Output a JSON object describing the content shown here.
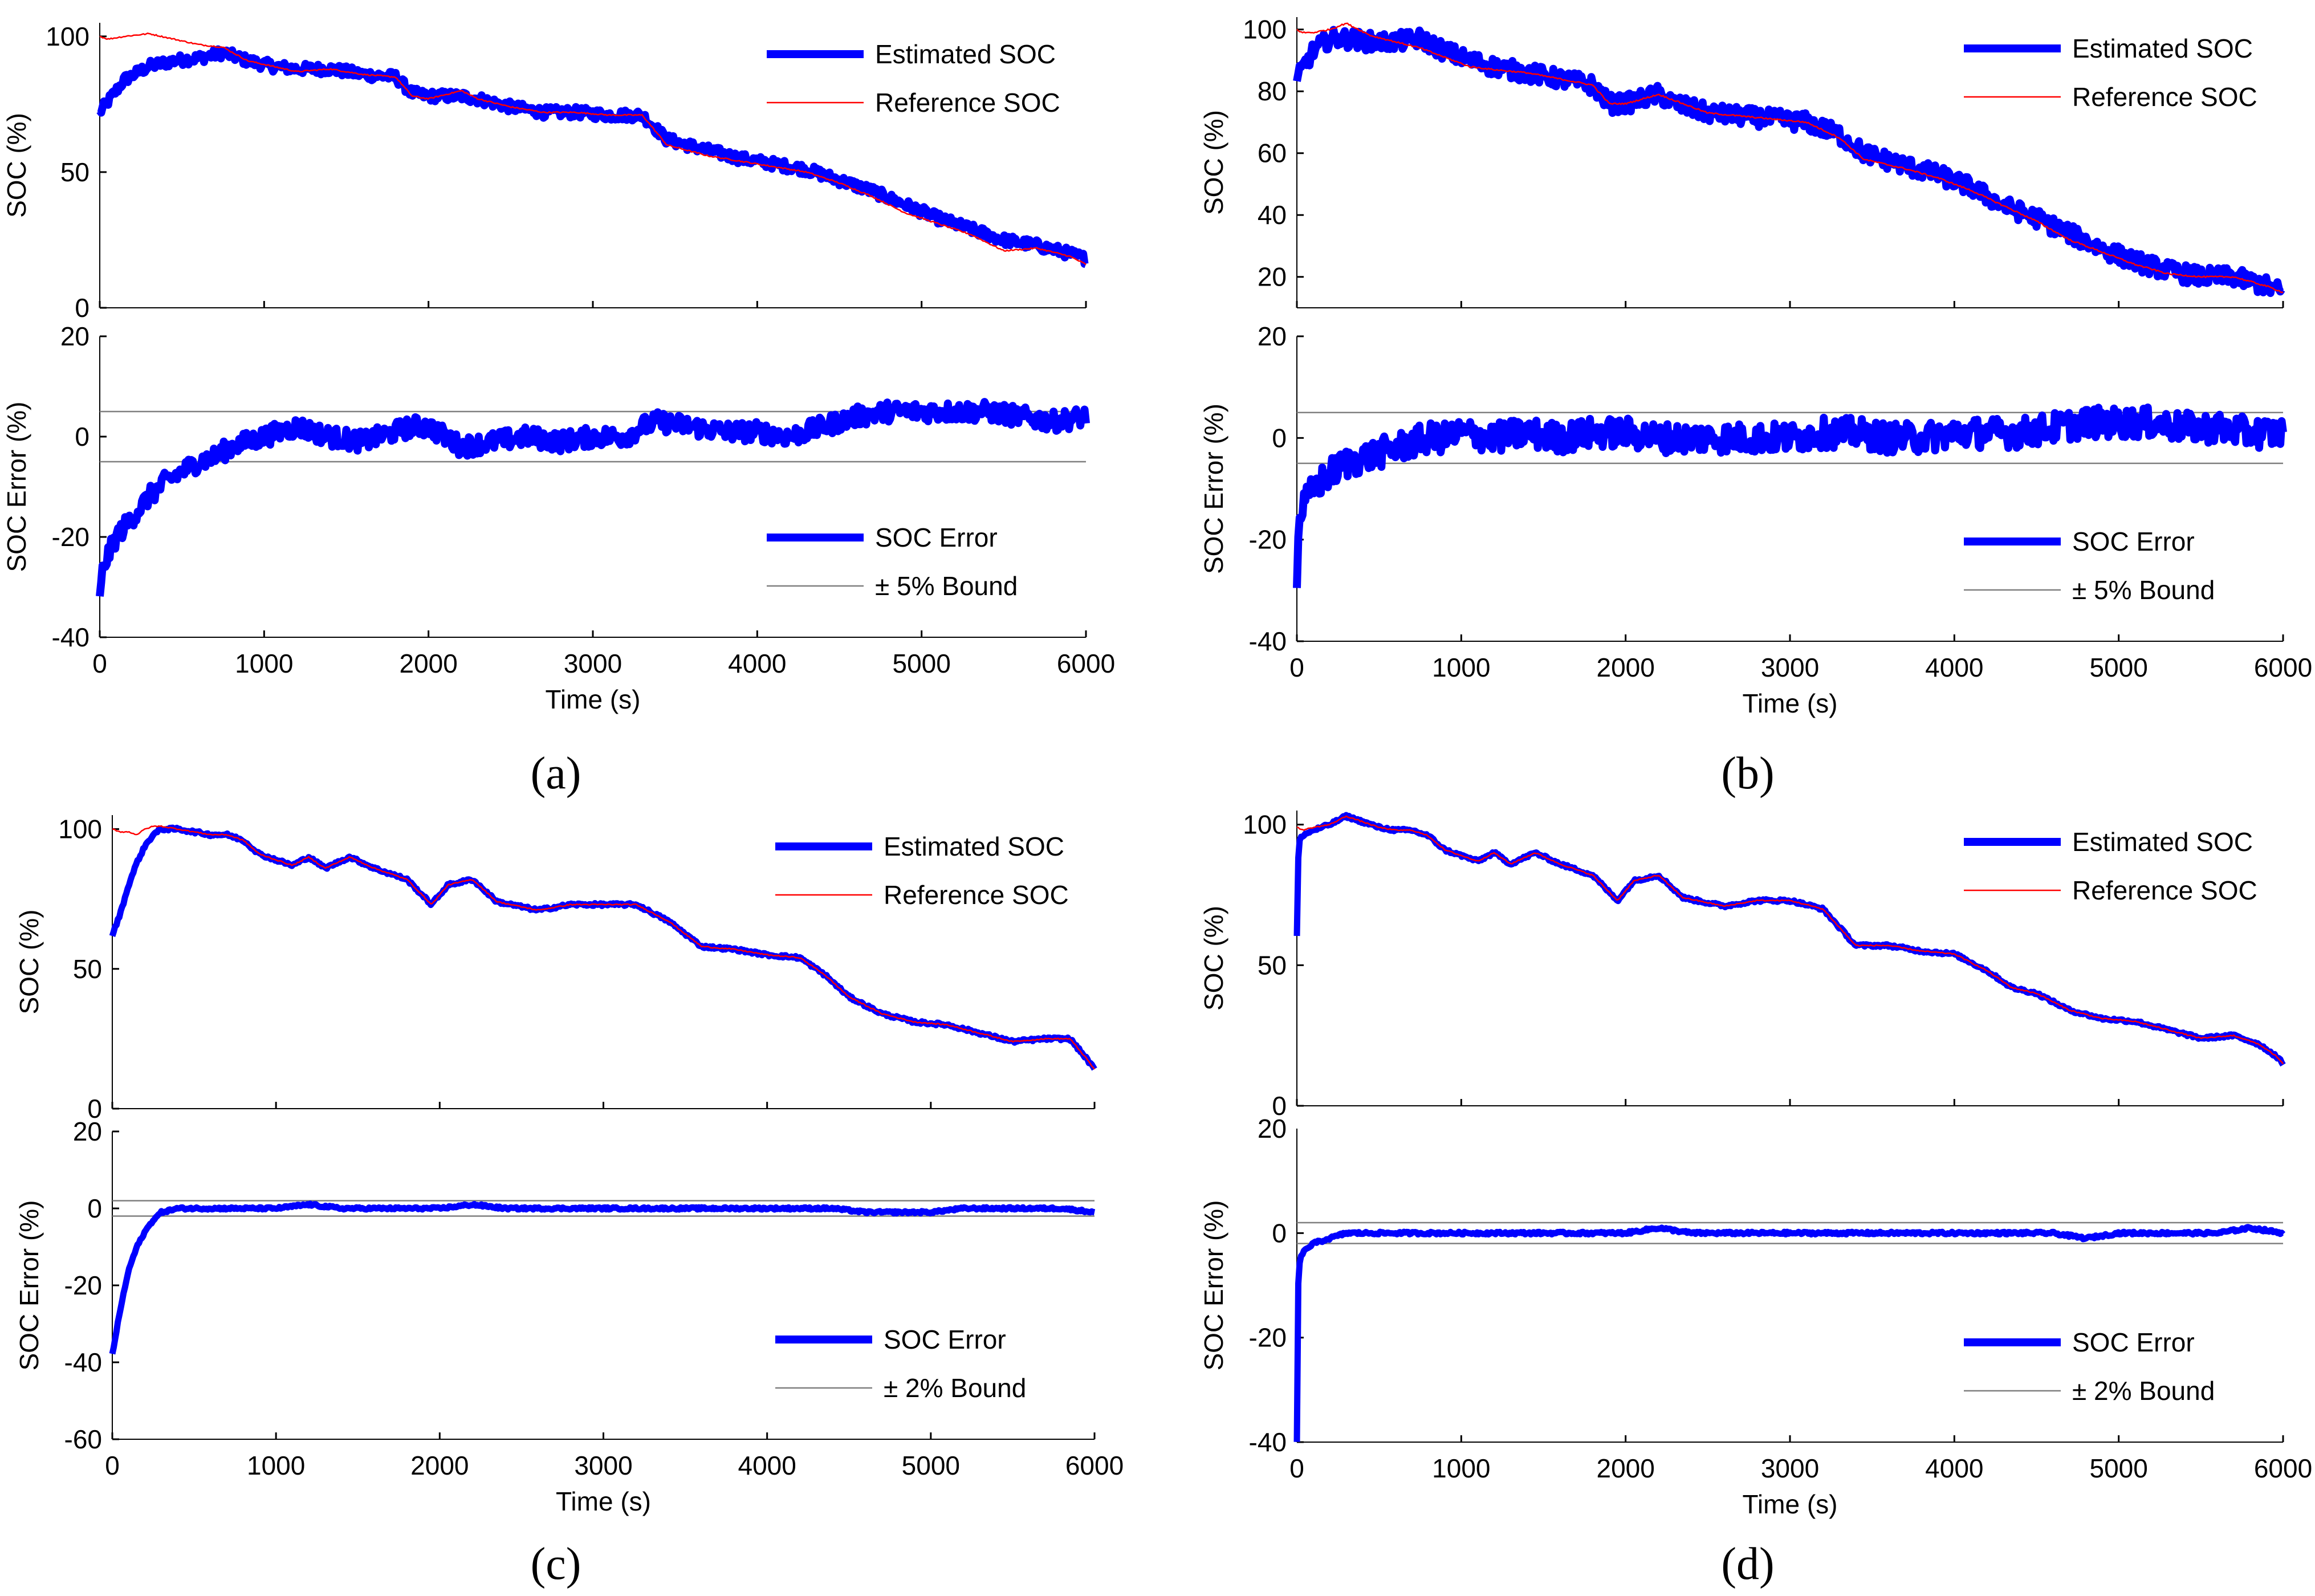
{
  "figure": {
    "panel_labels": [
      "(a)",
      "(b)",
      "(c)",
      "(d)"
    ]
  },
  "colors": {
    "estimated": "#0000ff",
    "reference": "#ff0000",
    "bound": "#7f7f7f",
    "axis": "#000000",
    "background": "#ffffff"
  },
  "chart_data": [
    {
      "type": "line",
      "panel": "a",
      "title": "",
      "xlabel": "",
      "ylabel": "SOC (%)",
      "xlim": [
        0,
        6000
      ],
      "ylim": [
        0,
        105
      ],
      "xticks": [],
      "yticks": [
        0,
        50,
        100
      ],
      "legend": {
        "position": "top-right",
        "entries": [
          "Estimated SOC",
          "Reference SOC"
        ]
      },
      "noise": 4,
      "x": [
        0,
        50,
        150,
        300,
        450,
        600,
        750,
        900,
        1050,
        1200,
        1400,
        1600,
        1800,
        1900,
        2000,
        2200,
        2300,
        2500,
        2700,
        2900,
        3100,
        3300,
        3450,
        3700,
        3900,
        4100,
        4300,
        4500,
        4700,
        4900,
        5100,
        5300,
        5500,
        5700,
        5900,
        6000
      ],
      "series": [
        {
          "name": "Estimated SOC",
          "values": [
            72,
            76,
            84,
            89,
            91,
            92,
            94,
            91,
            89,
            88,
            88,
            86,
            85,
            79,
            78,
            78,
            77,
            74,
            72,
            72,
            71,
            71,
            62,
            58,
            55,
            53,
            51,
            47,
            43,
            38,
            33,
            29,
            25,
            23,
            20,
            18
          ]
        },
        {
          "name": "Reference SOC",
          "values": [
            100,
            99,
            100,
            101,
            99,
            97,
            96,
            91,
            89,
            87,
            88,
            86,
            85,
            78,
            77,
            80,
            77,
            74,
            72,
            72,
            71,
            71,
            60,
            56,
            54,
            52,
            50,
            46,
            41,
            35,
            31,
            27,
            21,
            22,
            19,
            16
          ]
        }
      ]
    },
    {
      "type": "line",
      "panel": "a",
      "title": "",
      "xlabel": "Time (s)",
      "ylabel": "SOC Error (%)",
      "xlim": [
        0,
        6000
      ],
      "ylim": [
        -40,
        20
      ],
      "xticks": [
        0,
        1000,
        2000,
        3000,
        4000,
        5000,
        6000
      ],
      "yticks": [
        -40,
        -20,
        0,
        20
      ],
      "bounds": [
        5,
        -5
      ],
      "legend": {
        "position": "bottom-right",
        "entries": [
          "SOC Error",
          "± 5% Bound"
        ]
      },
      "noise": 4,
      "x": [
        0,
        20,
        100,
        200,
        300,
        400,
        500,
        600,
        700,
        800,
        900,
        1000,
        1100,
        1200,
        1400,
        1600,
        1800,
        1900,
        2000,
        2100,
        2200,
        2400,
        2600,
        2800,
        3000,
        3200,
        3300,
        3400,
        3600,
        3800,
        4000,
        4200,
        4400,
        4600,
        4800,
        5000,
        5200,
        5400,
        5600,
        5800,
        6000
      ],
      "series": [
        {
          "name": "SOC Error",
          "values": [
            -33,
            -26,
            -20,
            -16,
            -12,
            -9,
            -7,
            -5,
            -4,
            -2,
            -1,
            0,
            1,
            2,
            0,
            -1,
            1,
            2,
            2,
            0,
            -2,
            -1,
            0,
            -1,
            0,
            0,
            2,
            3,
            2,
            1,
            1,
            0,
            2,
            4,
            5,
            5,
            5,
            5,
            4,
            3,
            4
          ]
        }
      ]
    },
    {
      "type": "line",
      "panel": "b",
      "title": "",
      "xlabel": "",
      "ylabel": "SOC (%)",
      "xlim": [
        0,
        6000
      ],
      "ylim": [
        10,
        104
      ],
      "xticks": [],
      "yticks": [
        20,
        40,
        60,
        80,
        100
      ],
      "legend": {
        "position": "top-right",
        "entries": [
          "Estimated SOC",
          "Reference SOC"
        ]
      },
      "noise": 6,
      "x": [
        0,
        30,
        100,
        200,
        300,
        450,
        600,
        750,
        900,
        1050,
        1200,
        1400,
        1600,
        1800,
        1900,
        2000,
        2200,
        2300,
        2500,
        2700,
        2900,
        3100,
        3300,
        3450,
        3700,
        3900,
        4100,
        4300,
        4500,
        4700,
        4900,
        5100,
        5300,
        5500,
        5700,
        5900,
        6000
      ],
      "series": [
        {
          "name": "Estimated SOC",
          "values": [
            83,
            87,
            93,
            97,
            97,
            96,
            96,
            97,
            93,
            90,
            88,
            86,
            84,
            82,
            76,
            76,
            79,
            76,
            73,
            72,
            71,
            70,
            66,
            60,
            56,
            53,
            49,
            43,
            39,
            34,
            29,
            25,
            22,
            20,
            20,
            17,
            15
          ]
        },
        {
          "name": "Reference SOC",
          "values": [
            100,
            99,
            99,
            100,
            102,
            98,
            96,
            94,
            91,
            88,
            87,
            86,
            84,
            82,
            76,
            76,
            79,
            77,
            73,
            72,
            71,
            70,
            65,
            58,
            55,
            52,
            48,
            43,
            38,
            32,
            28,
            24,
            21,
            20,
            20,
            17,
            15
          ]
        }
      ]
    },
    {
      "type": "line",
      "panel": "b",
      "title": "",
      "xlabel": "Time (s)",
      "ylabel": "SOC Error (%)",
      "xlim": [
        0,
        6000
      ],
      "ylim": [
        -40,
        20
      ],
      "xticks": [
        0,
        1000,
        2000,
        3000,
        4000,
        5000,
        6000
      ],
      "yticks": [
        -40,
        -20,
        0,
        20
      ],
      "bounds": [
        5,
        -5
      ],
      "legend": {
        "position": "bottom-right",
        "entries": [
          "SOC Error",
          "± 5% Bound"
        ]
      },
      "noise": 6,
      "x": [
        0,
        15,
        50,
        100,
        200,
        300,
        400,
        500,
        600,
        700,
        800,
        900,
        1000,
        1200,
        1400,
        1600,
        1800,
        2000,
        2200,
        2400,
        2600,
        2800,
        3000,
        3200,
        3400,
        3600,
        3800,
        4000,
        4200,
        4400,
        4600,
        4800,
        5000,
        5200,
        5400,
        5600,
        5800,
        6000
      ],
      "series": [
        {
          "name": "SOC Error",
          "values": [
            -28,
            -15,
            -13,
            -10,
            -7,
            -5,
            -4,
            -3,
            -2,
            -1,
            0,
            0,
            1,
            0,
            1,
            0,
            1,
            1,
            0,
            0,
            0,
            0,
            0,
            1,
            1,
            0,
            0,
            1,
            1,
            1,
            2,
            3,
            3,
            3,
            2,
            2,
            1,
            1
          ]
        }
      ]
    },
    {
      "type": "line",
      "panel": "c",
      "title": "",
      "xlabel": "",
      "ylabel": "SOC (%)",
      "xlim": [
        0,
        6000
      ],
      "ylim": [
        0,
        105
      ],
      "xticks": [],
      "yticks": [
        0,
        50,
        100
      ],
      "legend": {
        "position": "top-right",
        "entries": [
          "Estimated SOC",
          "Reference SOC"
        ]
      },
      "noise": 1,
      "x": [
        0,
        50,
        100,
        150,
        200,
        250,
        300,
        400,
        500,
        600,
        700,
        800,
        900,
        1000,
        1100,
        1200,
        1300,
        1450,
        1600,
        1800,
        1950,
        2050,
        2200,
        2350,
        2600,
        2800,
        3000,
        3200,
        3400,
        3600,
        3800,
        4000,
        4200,
        4350,
        4500,
        4700,
        4900,
        5100,
        5300,
        5500,
        5700,
        5850,
        5950,
        6000
      ],
      "series": [
        {
          "name": "Estimated SOC",
          "values": [
            62,
            70,
            80,
            88,
            94,
            98,
            100,
            100,
            99,
            98,
            98,
            96,
            91,
            89,
            87,
            90,
            86,
            90,
            86,
            82,
            73,
            80,
            82,
            74,
            71,
            73,
            73,
            73,
            67,
            58,
            57,
            55,
            54,
            48,
            40,
            34,
            31,
            30,
            27,
            24,
            25,
            25,
            18,
            14
          ]
        },
        {
          "name": "Reference SOC",
          "values": [
            100,
            99,
            99,
            98,
            100,
            101,
            101,
            100,
            99,
            98,
            98,
            96,
            91,
            89,
            87,
            90,
            86,
            90,
            86,
            82,
            73,
            80,
            82,
            74,
            71,
            73,
            73,
            73,
            67,
            58,
            57,
            55,
            54,
            48,
            40,
            34,
            31,
            30,
            27,
            24,
            25,
            25,
            18,
            14
          ]
        }
      ]
    },
    {
      "type": "line",
      "panel": "c",
      "title": "",
      "xlabel": "Time (s)",
      "ylabel": "SOC Error (%)",
      "xlim": [
        0,
        6000
      ],
      "ylim": [
        -60,
        20
      ],
      "xticks": [
        0,
        1000,
        2000,
        3000,
        4000,
        5000,
        6000
      ],
      "yticks": [
        -60,
        -40,
        -20,
        0,
        20
      ],
      "bounds": [
        2,
        -2
      ],
      "legend": {
        "position": "bottom-right",
        "entries": [
          "SOC Error",
          "± 2% Bound"
        ]
      },
      "noise": 0.6,
      "x": [
        0,
        25,
        50,
        75,
        100,
        150,
        200,
        250,
        300,
        400,
        600,
        800,
        1000,
        1200,
        1400,
        1600,
        1800,
        2000,
        2200,
        2400,
        2600,
        2800,
        3000,
        3200,
        3400,
        3600,
        3800,
        4000,
        4200,
        4400,
        4600,
        4800,
        5000,
        5200,
        5400,
        5600,
        5800,
        6000
      ],
      "series": [
        {
          "name": "SOC Error",
          "values": [
            -38,
            -32,
            -26,
            -21,
            -16,
            -10,
            -6,
            -3,
            -1,
            0,
            0,
            0,
            0,
            1,
            0,
            0,
            0,
            0,
            1,
            0,
            0,
            0,
            0,
            0,
            0,
            0,
            0,
            0,
            0,
            0,
            -1,
            -1,
            -1,
            0,
            0,
            0,
            0,
            -1
          ]
        }
      ]
    },
    {
      "type": "line",
      "panel": "d",
      "title": "",
      "xlabel": "",
      "ylabel": "SOC (%)",
      "xlim": [
        0,
        6000
      ],
      "ylim": [
        0,
        105
      ],
      "xticks": [],
      "yticks": [
        0,
        50,
        100
      ],
      "legend": {
        "position": "top-right",
        "entries": [
          "Estimated SOC",
          "Reference SOC"
        ]
      },
      "noise": 1,
      "x": [
        0,
        10,
        30,
        100,
        200,
        300,
        400,
        500,
        600,
        700,
        800,
        900,
        1000,
        1100,
        1200,
        1300,
        1450,
        1600,
        1800,
        1950,
        2050,
        2200,
        2350,
        2600,
        2800,
        3000,
        3200,
        3400,
        3600,
        3800,
        4000,
        4200,
        4350,
        4500,
        4700,
        4900,
        5100,
        5300,
        5500,
        5700,
        5850,
        5950,
        6000
      ],
      "series": [
        {
          "name": "Estimated SOC",
          "values": [
            60,
            93,
            96,
            98,
            100,
            103,
            101,
            99,
            98,
            98,
            96,
            91,
            89,
            87,
            90,
            86,
            90,
            86,
            82,
            73,
            80,
            82,
            74,
            71,
            73,
            73,
            70,
            57,
            57,
            55,
            54,
            48,
            42,
            40,
            34,
            31,
            30,
            27,
            24,
            25,
            22,
            18,
            15
          ]
        },
        {
          "name": "Reference SOC",
          "values": [
            99,
            99,
            98,
            99,
            100,
            103,
            101,
            99,
            98,
            98,
            96,
            91,
            89,
            87,
            90,
            86,
            90,
            86,
            82,
            73,
            80,
            82,
            74,
            71,
            73,
            73,
            70,
            57,
            57,
            55,
            54,
            48,
            42,
            40,
            34,
            31,
            30,
            27,
            24,
            25,
            22,
            18,
            15
          ]
        }
      ]
    },
    {
      "type": "line",
      "panel": "d",
      "title": "",
      "xlabel": "Time (s)",
      "ylabel": "SOC Error (%)",
      "xlim": [
        0,
        6000
      ],
      "ylim": [
        -40,
        20
      ],
      "xticks": [
        0,
        1000,
        2000,
        3000,
        4000,
        5000,
        6000
      ],
      "yticks": [
        -40,
        -20,
        0
      ],
      "extra_ytick_labels": [
        20
      ],
      "bounds": [
        2,
        -2
      ],
      "legend": {
        "position": "bottom-right",
        "entries": [
          "SOC Error",
          "± 2% Bound"
        ]
      },
      "noise": 0.5,
      "x": [
        0,
        5,
        15,
        30,
        60,
        100,
        200,
        300,
        400,
        600,
        800,
        1000,
        1200,
        1400,
        1600,
        1800,
        2000,
        2200,
        2400,
        2600,
        2800,
        3000,
        3200,
        3400,
        3600,
        3800,
        4000,
        4200,
        4400,
        4600,
        4800,
        5000,
        5200,
        5400,
        5600,
        5800,
        6000
      ],
      "series": [
        {
          "name": "SOC Error",
          "values": [
            -40,
            -12,
            -6,
            -4,
            -3,
            -2,
            -1,
            0,
            0,
            0,
            0,
            0,
            0,
            0,
            0,
            0,
            0,
            1,
            0,
            0,
            0,
            0,
            0,
            0,
            0,
            0,
            0,
            0,
            0,
            0,
            -1,
            0,
            0,
            0,
            0,
            1,
            0
          ]
        }
      ]
    }
  ]
}
